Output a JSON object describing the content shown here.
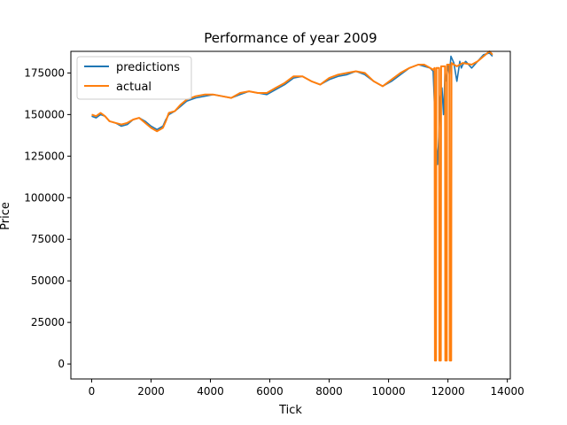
{
  "chart_data": {
    "type": "line",
    "title": "Performance of year 2009",
    "xlabel": "Tick",
    "ylabel": "Price",
    "xlim": [
      -700,
      14100
    ],
    "ylim": [
      -9000,
      188000
    ],
    "xticks": [
      0,
      2000,
      4000,
      6000,
      8000,
      10000,
      12000,
      14000
    ],
    "xtick_labels": [
      "0",
      "2000",
      "4000",
      "6000",
      "8000",
      "10000",
      "12000",
      "14000"
    ],
    "yticks": [
      0,
      25000,
      50000,
      75000,
      100000,
      125000,
      150000,
      175000
    ],
    "ytick_labels": [
      "0",
      "25000",
      "50000",
      "75000",
      "100000",
      "125000",
      "150000",
      "175000"
    ],
    "grid": false,
    "legend_position": "top-left",
    "series": [
      {
        "name": "predictions",
        "color": "#1f77b4",
        "x": [
          0,
          150,
          300,
          450,
          600,
          800,
          1000,
          1200,
          1400,
          1600,
          1800,
          2000,
          2200,
          2400,
          2500,
          2600,
          2800,
          3000,
          3200,
          3500,
          3800,
          4100,
          4400,
          4700,
          5000,
          5300,
          5600,
          5900,
          6200,
          6500,
          6800,
          7100,
          7400,
          7700,
          8000,
          8300,
          8600,
          8900,
          9200,
          9500,
          9800,
          10100,
          10400,
          10700,
          11000,
          11200,
          11400,
          11500,
          11550,
          11600,
          11650,
          11700,
          11750,
          11800,
          11850,
          11900,
          11950,
          12000,
          12050,
          12100,
          12200,
          12300,
          12350,
          12400,
          12450,
          12500,
          12600,
          12800,
          13000,
          13200,
          13400,
          13500
        ],
        "y": [
          149000,
          148000,
          150000,
          149000,
          146000,
          145000,
          143000,
          144000,
          147000,
          148000,
          146000,
          143000,
          141000,
          143000,
          147000,
          150000,
          152000,
          155000,
          158000,
          160000,
          161000,
          162000,
          161000,
          160000,
          162000,
          164000,
          163000,
          162000,
          165000,
          168000,
          172000,
          173000,
          170000,
          168000,
          171000,
          173000,
          174000,
          176000,
          174000,
          170000,
          167000,
          170000,
          174000,
          178000,
          180000,
          179000,
          178000,
          176000,
          155000,
          135000,
          120000,
          140000,
          160000,
          166000,
          150000,
          175000,
          170000,
          180000,
          174000,
          185000,
          181000,
          170000,
          176000,
          182000,
          178000,
          180000,
          182000,
          178000,
          182000,
          186000,
          187000,
          185000
        ]
      },
      {
        "name": "actual",
        "color": "#ff7f0e",
        "x": [
          0,
          150,
          300,
          450,
          600,
          800,
          1000,
          1200,
          1400,
          1600,
          1800,
          2000,
          2200,
          2400,
          2500,
          2600,
          2800,
          3000,
          3200,
          3500,
          3800,
          4100,
          4400,
          4700,
          5000,
          5300,
          5600,
          5900,
          6200,
          6500,
          6800,
          7100,
          7400,
          7700,
          8000,
          8300,
          8600,
          8900,
          9200,
          9500,
          9800,
          10100,
          10400,
          10700,
          11000,
          11200,
          11400,
          11500,
          11550,
          11560,
          11600,
          11610,
          11650,
          11700,
          11710,
          11760,
          11770,
          11800,
          11900,
          11910,
          11960,
          11970,
          12000,
          12050,
          12060,
          12110,
          12120,
          12200,
          12300,
          12500,
          12800,
          13000,
          13200,
          13400,
          13500
        ],
        "y": [
          150000,
          149000,
          151000,
          149000,
          146000,
          145000,
          144000,
          145000,
          147000,
          148000,
          145000,
          142000,
          140000,
          142000,
          146000,
          151000,
          152000,
          156000,
          159000,
          161000,
          162000,
          162000,
          161000,
          160000,
          163000,
          164000,
          163000,
          163000,
          166000,
          169000,
          173000,
          173000,
          170000,
          168000,
          172000,
          174000,
          175000,
          176000,
          175000,
          170000,
          167000,
          171000,
          175000,
          178000,
          180000,
          180000,
          178000,
          177000,
          178000,
          2000,
          2000,
          178000,
          178000,
          178000,
          2000,
          2000,
          179000,
          179000,
          179000,
          2000,
          2000,
          180000,
          180000,
          180000,
          2000,
          2000,
          181000,
          180000,
          179000,
          181000,
          180000,
          182000,
          185000,
          188000,
          186000
        ]
      }
    ]
  }
}
